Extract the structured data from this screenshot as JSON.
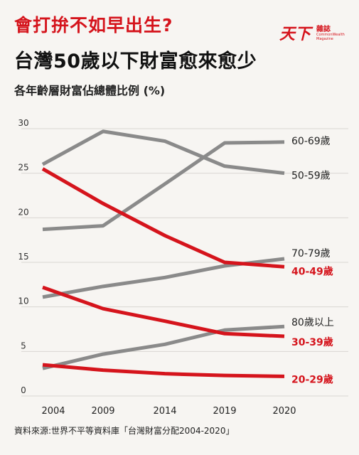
{
  "header": {
    "title_red": "會打拚不如早出生?",
    "title": "台灣50歲以下財富愈來愈少",
    "subtitle": "各年齡層財富佔總體比例 (%)"
  },
  "logo": {
    "main": "天下",
    "mag": "雜誌",
    "english": "CommonWealth Magazine"
  },
  "source": "資料來源:世界不平等資料庫「台灣財富分配2004-2020」",
  "colors": {
    "gray": "#8a8a8a",
    "red": "#d5141c"
  },
  "chart_data": {
    "type": "line",
    "x": [
      "2004",
      "2009",
      "2014",
      "2019",
      "2020"
    ],
    "ylim": [
      0,
      30
    ],
    "yticks": [
      0,
      5,
      10,
      15,
      20,
      25,
      30
    ],
    "grid": true,
    "series": [
      {
        "name": "60-69歲",
        "color": "gray",
        "values": [
          18.7,
          19.1,
          23.8,
          28.4,
          28.5
        ]
      },
      {
        "name": "50-59歲",
        "color": "gray",
        "values": [
          26.0,
          29.7,
          28.6,
          25.8,
          25.0
        ]
      },
      {
        "name": "70-79歲",
        "color": "gray",
        "values": [
          11.1,
          12.3,
          13.3,
          14.6,
          15.4
        ]
      },
      {
        "name": "40-49歲",
        "color": "red",
        "values": [
          25.5,
          21.6,
          18.0,
          15.0,
          14.5
        ]
      },
      {
        "name": "80歲以上",
        "color": "gray",
        "values": [
          3.1,
          4.7,
          5.8,
          7.4,
          7.8
        ]
      },
      {
        "name": "30-39歲",
        "color": "red",
        "values": [
          12.2,
          9.8,
          8.4,
          7.0,
          6.7
        ]
      },
      {
        "name": "20-29歲",
        "color": "red",
        "values": [
          3.5,
          2.9,
          2.5,
          2.3,
          2.2
        ]
      }
    ]
  }
}
